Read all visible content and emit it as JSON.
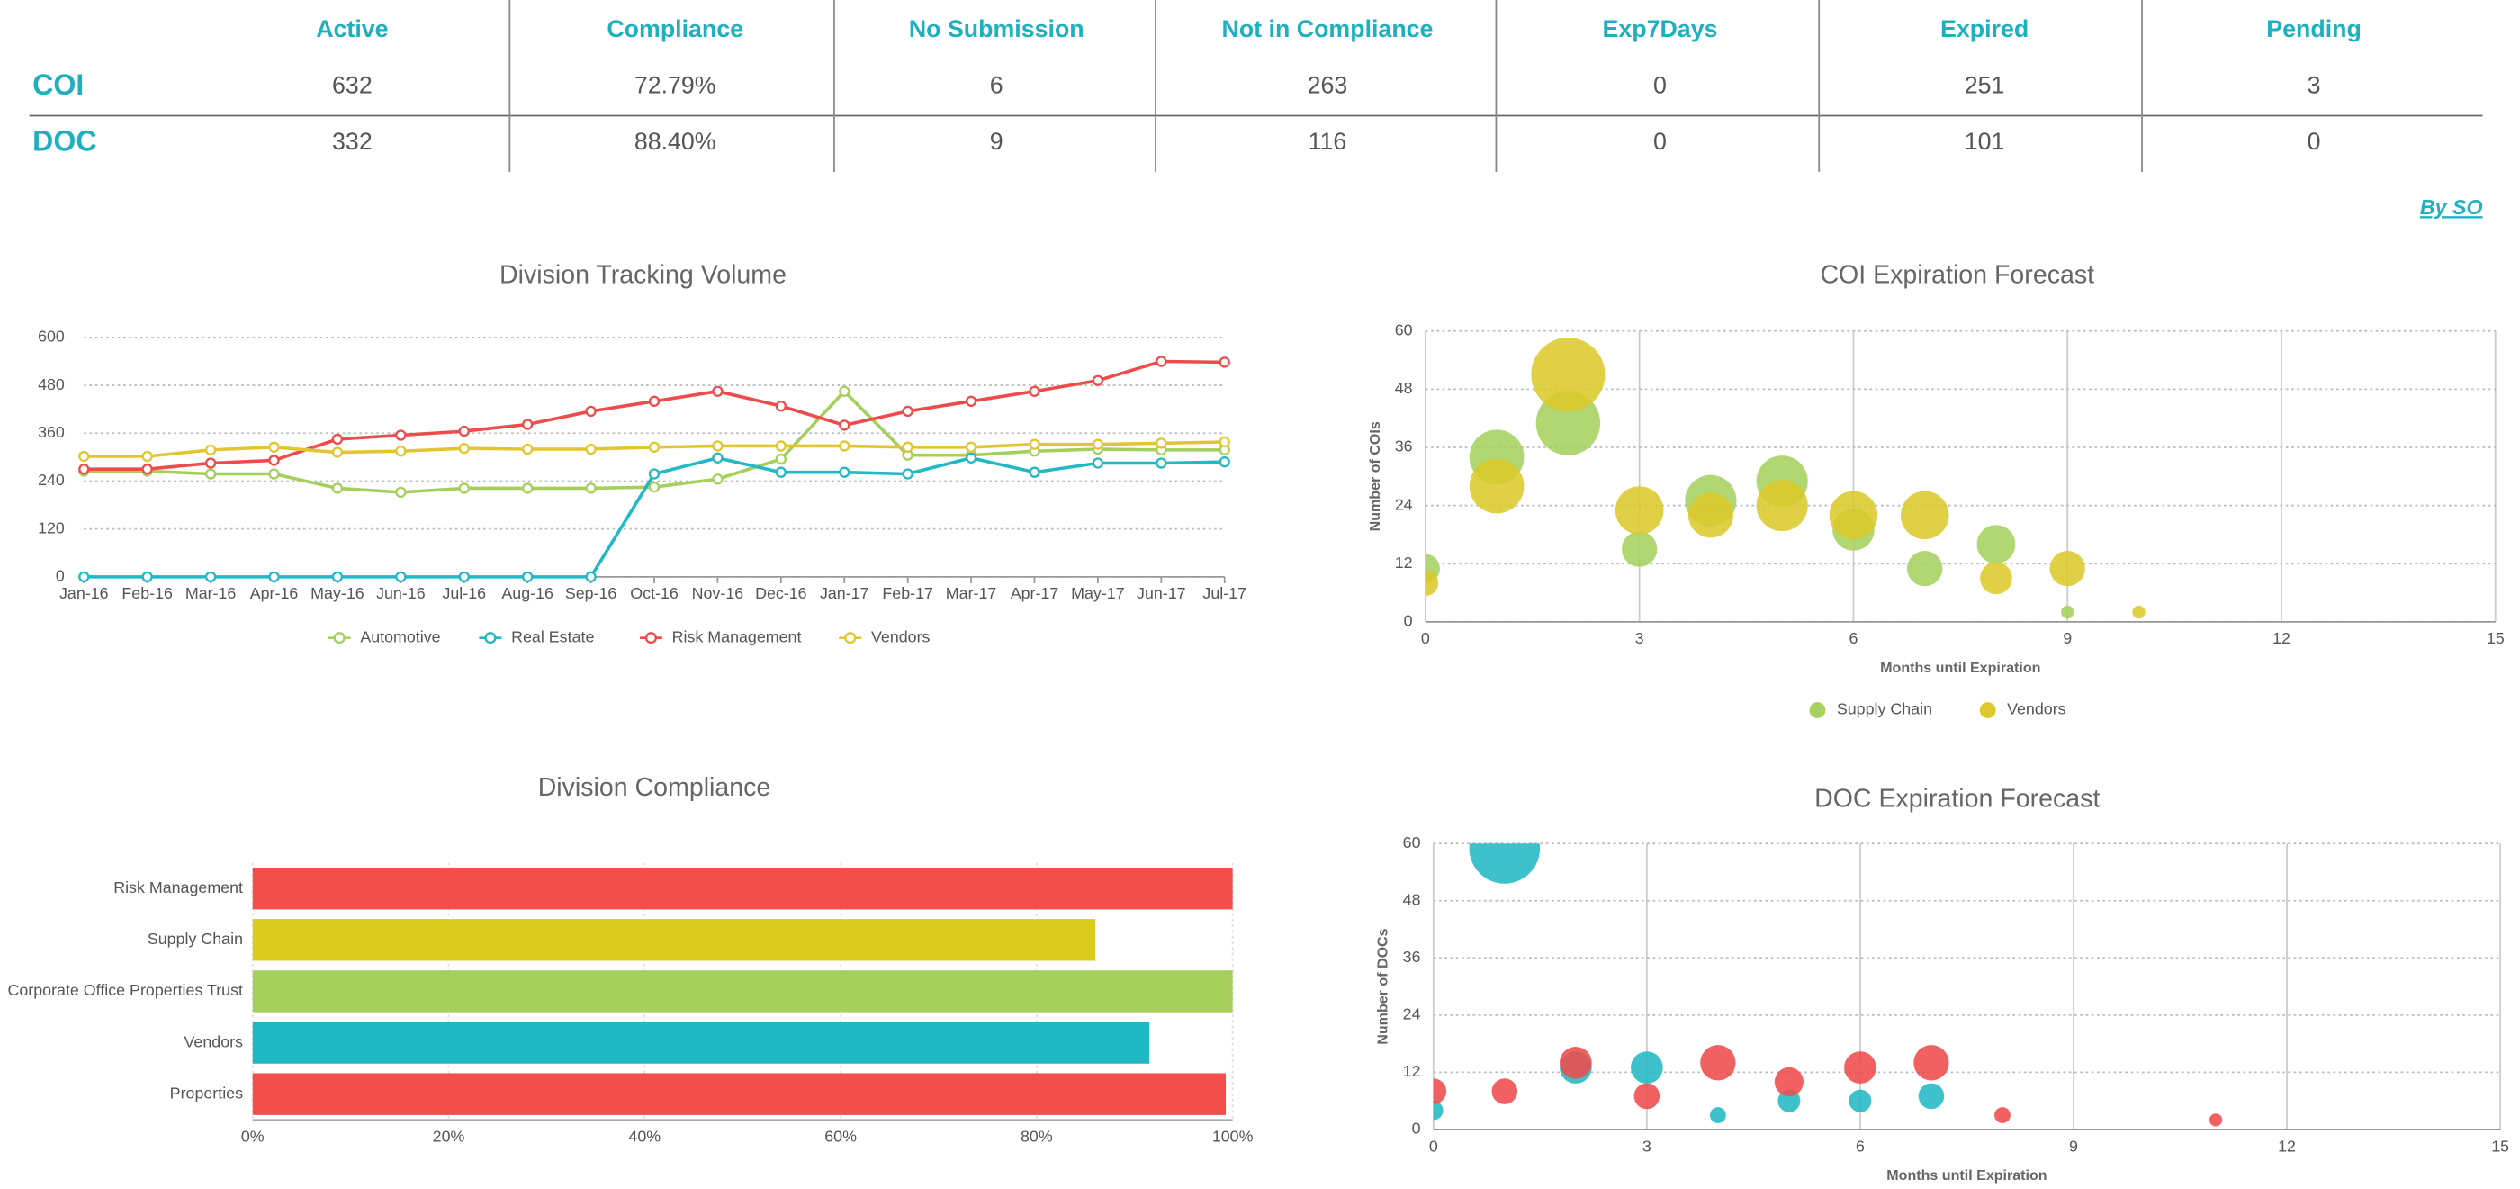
{
  "table": {
    "columns": [
      "Active",
      "Compliance",
      "No Submission",
      "Not in Compliance",
      "Exp7Days",
      "Expired",
      "Pending"
    ],
    "rows": [
      [
        "COI",
        "632",
        "72.79%",
        "6",
        "263",
        "0",
        "251",
        "3"
      ],
      [
        "DOC",
        "332",
        "88.40%",
        "9",
        "116",
        "0",
        "101",
        "0"
      ]
    ]
  },
  "link": "By SO",
  "chart_data": [
    {
      "type": "line",
      "title": "Division Tracking Volume",
      "categories": [
        "Jan-16",
        "Feb-16",
        "Mar-16",
        "Apr-16",
        "May-16",
        "Jun-16",
        "Jul-16",
        "Aug-16",
        "Sep-16",
        "Oct-16",
        "Nov-16",
        "Dec-16",
        "Jan-17",
        "Feb-17",
        "Mar-17",
        "Apr-17",
        "May-17",
        "Jun-17",
        "Jul-17"
      ],
      "series": [
        {
          "name": "Automotive",
          "color": "#a4cf5a",
          "values": [
            265,
            265,
            258,
            258,
            222,
            212,
            222,
            222,
            222,
            225,
            245,
            295,
            465,
            305,
            305,
            315,
            320,
            318,
            318
          ]
        },
        {
          "name": "Real Estate",
          "color": "#22b8c4",
          "values": [
            0,
            0,
            0,
            0,
            0,
            0,
            0,
            0,
            0,
            258,
            298,
            262,
            262,
            258,
            298,
            262,
            285,
            285,
            288
          ]
        },
        {
          "name": "Risk Management",
          "color": "#ef4b4b",
          "values": [
            270,
            270,
            285,
            292,
            345,
            355,
            365,
            382,
            415,
            440,
            465,
            428,
            380,
            415,
            440,
            465,
            492,
            540,
            538
          ]
        },
        {
          "name": "Vendors",
          "color": "#e2c631",
          "values": [
            302,
            302,
            318,
            325,
            312,
            315,
            322,
            320,
            320,
            325,
            328,
            328,
            328,
            325,
            325,
            332,
            332,
            335,
            338
          ]
        }
      ],
      "ylim": [
        0,
        600
      ],
      "yticks": [
        0,
        120,
        240,
        360,
        480,
        600
      ],
      "grid": true,
      "legend": "bottom"
    },
    {
      "type": "hbar",
      "title": "Division Compliance",
      "categories": [
        "Risk Management",
        "Supply Chain",
        "Corporate Office Properties Trust",
        "Vendors",
        "Properties"
      ],
      "values": [
        100,
        86,
        100,
        91.5,
        99.3
      ],
      "colors": [
        "#f24e4a",
        "#d9cc1f",
        "#a6d05b",
        "#1fb8c3",
        "#f24e4a"
      ],
      "xlim": [
        0,
        100
      ],
      "xticks": [
        {
          "value": 0,
          "label": "0%"
        },
        {
          "value": 20,
          "label": "20%"
        },
        {
          "value": 40,
          "label": "40%"
        },
        {
          "value": 60,
          "label": "60%"
        },
        {
          "value": 80,
          "label": "80%"
        },
        {
          "value": 100,
          "label": "100%"
        }
      ],
      "grid": true
    },
    {
      "type": "bubble",
      "title": "COI Expiration Forecast",
      "x_label": "Months until Expiration",
      "y_label": "Number of COIs",
      "series": [
        {
          "name": "Supply Chain",
          "color": "#a5d25d",
          "x": [
            0,
            1,
            2,
            3,
            4,
            5,
            6,
            7,
            8,
            9
          ],
          "values": [
            11,
            34,
            41,
            15,
            25,
            29,
            19,
            11,
            16,
            2
          ],
          "sizes": [
            9,
            17,
            20,
            11,
            16,
            16,
            13,
            11,
            12,
            4
          ]
        },
        {
          "name": "Vendors",
          "color": "#dcc92b",
          "x": [
            0,
            1,
            2,
            3,
            4,
            5,
            6,
            7,
            8,
            9,
            10
          ],
          "values": [
            8,
            28,
            51,
            23,
            22,
            24,
            22,
            22,
            9,
            11,
            2
          ],
          "sizes": [
            8,
            17,
            23,
            15,
            14,
            16,
            15,
            15,
            10,
            11,
            4
          ]
        }
      ],
      "xlim": [
        0,
        15
      ],
      "xticks": [
        0,
        3,
        6,
        9,
        12,
        15
      ],
      "ylim": [
        0,
        60
      ],
      "yticks": [
        0,
        12,
        24,
        36,
        48,
        60
      ],
      "grid": true,
      "legend": "bottom"
    },
    {
      "type": "bubble",
      "title": "DOC Expiration Forecast",
      "x_label": "Months until Expiration",
      "y_label": "Number of DOCs",
      "series": [
        {
          "color": "#22b8c4",
          "x": [
            1,
            0,
            2,
            3,
            4,
            5,
            6,
            7
          ],
          "values": [
            59,
            4,
            13,
            13,
            3,
            6,
            6,
            7
          ],
          "sizes": [
            22,
            6,
            10,
            10,
            5,
            7,
            7,
            8
          ]
        },
        {
          "color": "#ef4b4b",
          "x": [
            0,
            1,
            2,
            3,
            4,
            5,
            6,
            7,
            8,
            11
          ],
          "values": [
            8,
            8,
            14,
            7,
            14,
            10,
            13,
            14,
            3,
            2
          ],
          "sizes": [
            8,
            8,
            10,
            8,
            11,
            9,
            10,
            11,
            5,
            4
          ]
        }
      ],
      "xlim": [
        0,
        15
      ],
      "xticks": [
        0,
        3,
        6,
        9,
        12,
        15
      ],
      "ylim": [
        0,
        60
      ],
      "yticks": [
        0,
        12,
        24,
        36,
        48,
        60
      ],
      "grid": true
    }
  ]
}
